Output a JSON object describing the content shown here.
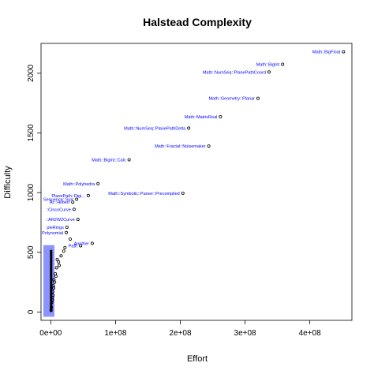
{
  "chart_data": {
    "type": "scatter",
    "title": "Halstead Complexity",
    "xlabel": "Effort",
    "ylabel": "Difficulty",
    "xlim": [
      -15000000,
      465000000
    ],
    "ylim": [
      -70,
      2250
    ],
    "x_ticks": [
      0,
      100000000,
      200000000,
      300000000,
      400000000
    ],
    "x_tick_labels": [
      "0e+00",
      "1e+08",
      "2e+08",
      "3e+08",
      "4e+08"
    ],
    "y_ticks": [
      0,
      500,
      1000,
      1500,
      2000
    ],
    "y_tick_labels": [
      "0",
      "500",
      "1000",
      "1500",
      "2000"
    ],
    "points": [
      {
        "x": 452000000,
        "y": 2180,
        "label": "Math::BigFloat"
      },
      {
        "x": 358000000,
        "y": 2075,
        "label": "Math::BigInt"
      },
      {
        "x": 337000000,
        "y": 2010,
        "label": "Math::NumSeq::PlanePathCoord"
      },
      {
        "x": 320000000,
        "y": 1790,
        "label": "Math::Geometry::Planar"
      },
      {
        "x": 262000000,
        "y": 1635,
        "label": "Math::MatrixReal"
      },
      {
        "x": 213000000,
        "y": 1540,
        "label": "Math::NumSeq::PlanePathDelta"
      },
      {
        "x": 244000000,
        "y": 1390,
        "label": "Math::Fractal::Noisemaker"
      },
      {
        "x": 121000000,
        "y": 1275,
        "label": "Math::BigInt::Calc"
      },
      {
        "x": 73000000,
        "y": 1075,
        "label": "Math::Polyhedra"
      },
      {
        "x": 204000000,
        "y": 995,
        "label": "Math::Symbolic::Parser::Precompiled"
      },
      {
        "x": 58000000,
        "y": 975,
        "label": "PlanePath::Digi..."
      },
      {
        "x": 40000000,
        "y": 945,
        "label": "Sequence::Surr"
      },
      {
        "x": 34000000,
        "y": 920,
        "label": "Ac::Hilbert"
      },
      {
        "x": 36000000,
        "y": 860,
        "label": "::CincoCurve"
      },
      {
        "x": 42000000,
        "y": 775,
        "label": "::AR2W2Curve"
      },
      {
        "x": 25000000,
        "y": 710,
        "label": "pleRings"
      },
      {
        "x": 24000000,
        "y": 665,
        "label": "Polynomial"
      },
      {
        "x": 30000000,
        "y": 610,
        "label": ""
      },
      {
        "x": 64000000,
        "y": 575,
        "label": "Another"
      },
      {
        "x": 46000000,
        "y": 555,
        "label": "Path"
      },
      {
        "x": 20000000,
        "y": 510,
        "label": ""
      },
      {
        "x": 16000000,
        "y": 470,
        "label": ""
      },
      {
        "x": 12000000,
        "y": 420,
        "label": ""
      },
      {
        "x": 9000000,
        "y": 370,
        "label": ""
      },
      {
        "x": 7000000,
        "y": 320,
        "label": ""
      },
      {
        "x": 5000000,
        "y": 270,
        "label": ""
      },
      {
        "x": 4000000,
        "y": 220,
        "label": ""
      },
      {
        "x": 3000000,
        "y": 170,
        "label": ""
      },
      {
        "x": 2000000,
        "y": 120,
        "label": ""
      },
      {
        "x": 1500000,
        "y": 80,
        "label": ""
      },
      {
        "x": 1000000,
        "y": 40,
        "label": ""
      },
      {
        "x": 500000,
        "y": 15,
        "label": ""
      },
      {
        "x": 8000000,
        "y": 300,
        "label": ""
      },
      {
        "x": 10000000,
        "y": 440,
        "label": ""
      },
      {
        "x": 6000000,
        "y": 250,
        "label": ""
      },
      {
        "x": 13000000,
        "y": 390,
        "label": ""
      },
      {
        "x": 22000000,
        "y": 540,
        "label": ""
      },
      {
        "x": 3500000,
        "y": 140,
        "label": ""
      },
      {
        "x": 2500000,
        "y": 100,
        "label": ""
      },
      {
        "x": 4500000,
        "y": 200,
        "label": ""
      }
    ],
    "grid": false
  }
}
